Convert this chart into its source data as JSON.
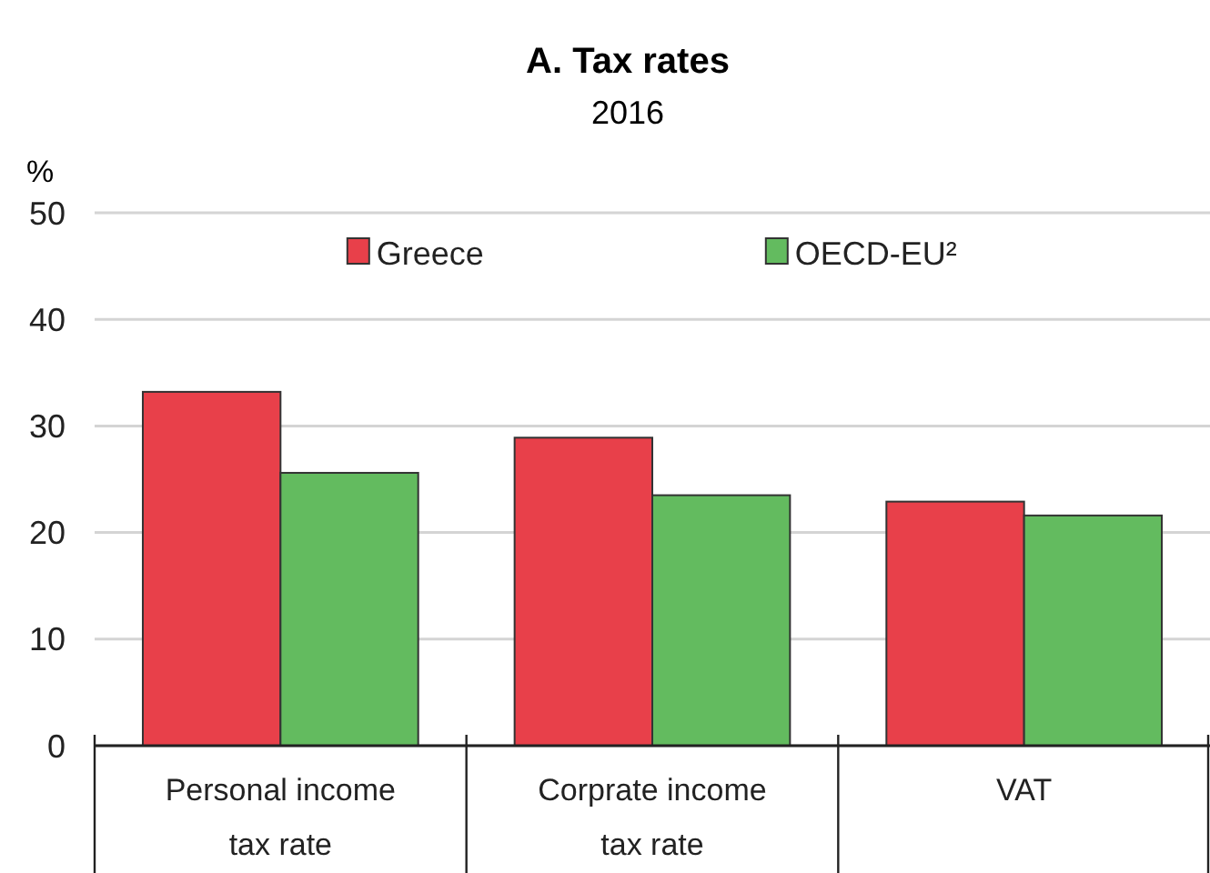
{
  "chart_data": {
    "type": "bar",
    "title": "A. Tax rates",
    "subtitle": "2016",
    "ylabel": "%",
    "categories": [
      "Personal income tax rate",
      "Corprate income tax rate",
      "VAT"
    ],
    "series": [
      {
        "name": "Greece",
        "color": "#e8404a",
        "values": [
          33.2,
          28.9,
          22.9
        ]
      },
      {
        "name": "OECD-EU²",
        "color": "#63bb5f",
        "values": [
          25.6,
          23.5,
          21.6
        ]
      }
    ],
    "ylim": [
      0,
      50
    ],
    "yticks": [
      0,
      10,
      20,
      30,
      40,
      50
    ],
    "grid": "y",
    "legend": "top"
  }
}
